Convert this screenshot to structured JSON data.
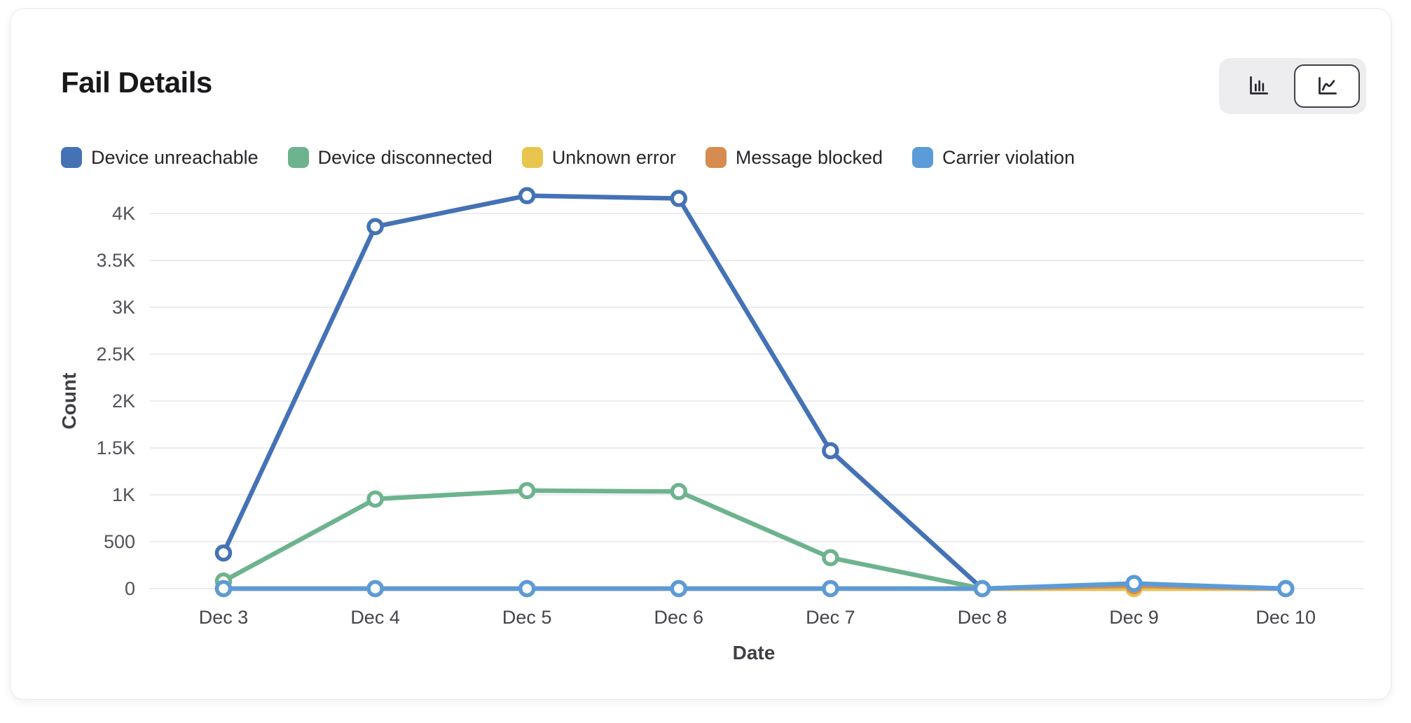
{
  "card": {
    "title": "Fail Details"
  },
  "toolbar": {
    "chart_type_toggle": [
      {
        "icon": "bar-chart-icon",
        "name": "bar",
        "active": false
      },
      {
        "icon": "line-chart-icon",
        "name": "line",
        "active": true
      }
    ]
  },
  "chart_data": {
    "type": "line",
    "title": "Fail Details",
    "xlabel": "Date",
    "ylabel": "Count",
    "categories": [
      "Dec 3",
      "Dec 4",
      "Dec 5",
      "Dec 6",
      "Dec 7",
      "Dec 8",
      "Dec 9",
      "Dec 10"
    ],
    "series": [
      {
        "name": "Device unreachable",
        "color": "#4472b5",
        "values": [
          380,
          3860,
          4190,
          4160,
          1470,
          0,
          0,
          0
        ]
      },
      {
        "name": "Device disconnected",
        "color": "#6db38e",
        "values": [
          80,
          955,
          1045,
          1035,
          330,
          0,
          35,
          0
        ]
      },
      {
        "name": "Unknown error",
        "color": "#e8c54e",
        "values": [
          0,
          0,
          0,
          0,
          0,
          0,
          0,
          0
        ]
      },
      {
        "name": "Message blocked",
        "color": "#d68c50",
        "values": [
          0,
          0,
          0,
          0,
          0,
          0,
          30,
          0
        ]
      },
      {
        "name": "Carrier violation",
        "color": "#5b9bd8",
        "values": [
          0,
          0,
          0,
          0,
          0,
          0,
          55,
          0
        ]
      }
    ],
    "yticks": {
      "labels": [
        "0",
        "500",
        "1K",
        "1.5K",
        "2K",
        "2.5K",
        "3K",
        "3.5K",
        "4K"
      ],
      "values": [
        0,
        500,
        1000,
        1500,
        2000,
        2500,
        3000,
        3500,
        4000
      ]
    },
    "ylim": [
      0,
      4300
    ],
    "grid": "horizontal",
    "legend_position": "top",
    "tick_color": "#52525b",
    "grid_color": "#ececf0",
    "marker": {
      "fill": "#ffffff",
      "radius": 9.5,
      "stroke_width": 5.5
    },
    "line_width": 6.5
  }
}
